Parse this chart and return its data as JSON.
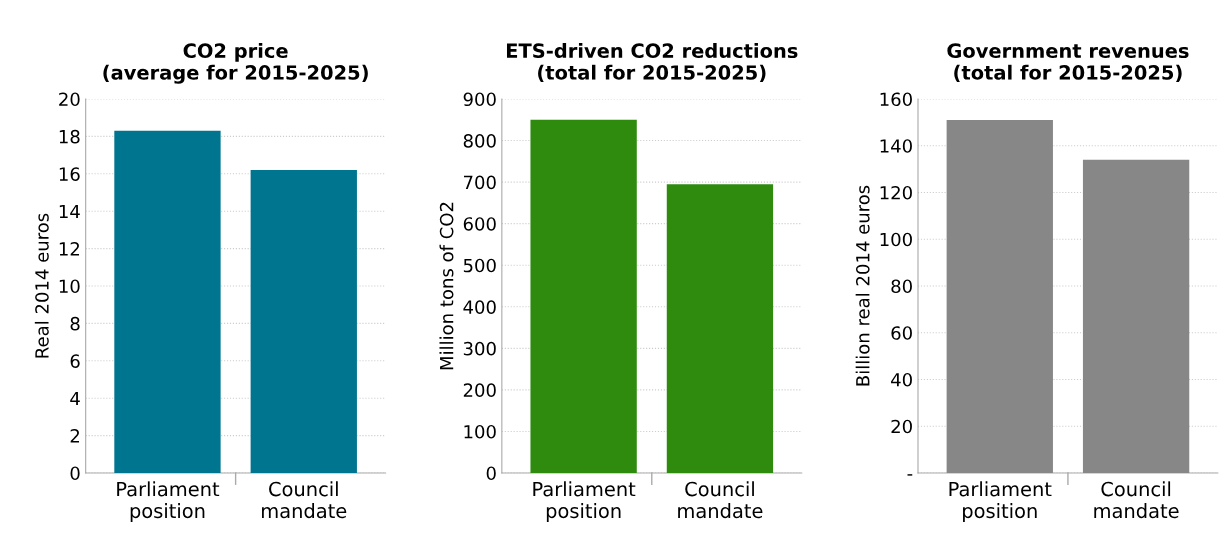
{
  "chart_data": [
    {
      "type": "bar",
      "title": "CO2 price\n(average for 2015-2025)",
      "ylabel": "Real 2014 euros",
      "categories": [
        "Parliament\nposition",
        "Council\nmandate"
      ],
      "values": [
        18.3,
        16.2
      ],
      "color": "#00758f",
      "ylim": [
        0,
        20
      ],
      "yticks": [
        0,
        2,
        4,
        6,
        8,
        10,
        12,
        14,
        16,
        18,
        20
      ],
      "grid": "y",
      "legend": false
    },
    {
      "type": "bar",
      "title": "ETS-driven CO2 reductions\n(total for 2015-2025)",
      "ylabel": "Million tons of CO2",
      "categories": [
        "Parliament\nposition",
        "Council\nmandate"
      ],
      "values": [
        850,
        695
      ],
      "color": "#2e8b0e",
      "ylim": [
        0,
        900
      ],
      "yticks": [
        0,
        100,
        200,
        300,
        400,
        500,
        600,
        700,
        800,
        900
      ],
      "grid": "y",
      "legend": false
    },
    {
      "type": "bar",
      "title": "Government revenues\n(total for 2015-2025)",
      "ylabel": "Billion real 2014 euros",
      "categories": [
        "Parliament\nposition",
        "Council\nmandate"
      ],
      "values": [
        151,
        134
      ],
      "color": "#878787",
      "ylim": [
        0,
        160
      ],
      "yticks": [
        {
          "value": 0,
          "label": "-"
        },
        20,
        40,
        60,
        80,
        100,
        120,
        140,
        160
      ],
      "grid": "y",
      "legend": false
    }
  ]
}
